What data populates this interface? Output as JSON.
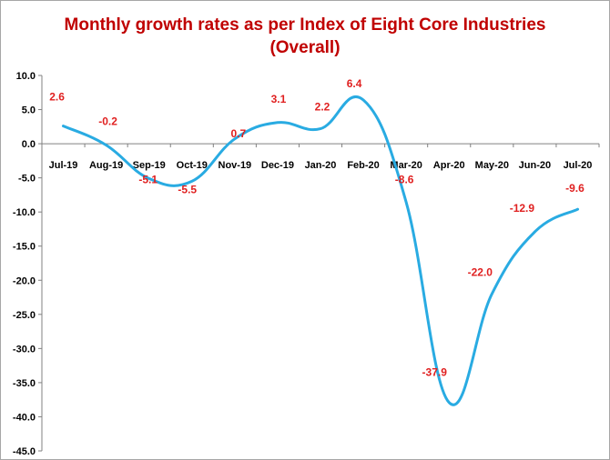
{
  "chart_data": {
    "type": "line",
    "title_lines": [
      "Monthly growth rates as per Index of Eight Core Industries",
      "(Overall)"
    ],
    "categories": [
      "Jul-19",
      "Aug-19",
      "Sep-19",
      "Oct-19",
      "Nov-19",
      "Dec-19",
      "Jan-20",
      "Feb-20",
      "Mar-20",
      "Apr-20",
      "May-20",
      "Jun-20",
      "Jul-20"
    ],
    "series": [
      {
        "values": [
          2.6,
          -0.2,
          -5.1,
          -5.5,
          0.7,
          3.1,
          2.2,
          6.4,
          -8.6,
          -37.9,
          -22.0,
          -12.9,
          -9.6
        ]
      }
    ],
    "data_labels": [
      "2.6",
      "-0.2",
      "-5.1",
      "-5.5",
      "0.7",
      "3.1",
      "2.2",
      "6.4",
      "-8.6",
      "-37.9",
      "-22.0",
      "-12.9",
      "-9.6"
    ],
    "ylim": [
      -45,
      10
    ],
    "ytick_labels": [
      "10.0",
      "5.0",
      "0.0",
      "-5.0",
      "-10.0",
      "-15.0",
      "-20.0",
      "-25.0",
      "-30.0",
      "-35.0",
      "-40.0",
      "-45.0"
    ],
    "grid": false,
    "legend": "none",
    "line_color": "#29abe2",
    "label_color": "#e02020",
    "title_color": "#c00000"
  }
}
